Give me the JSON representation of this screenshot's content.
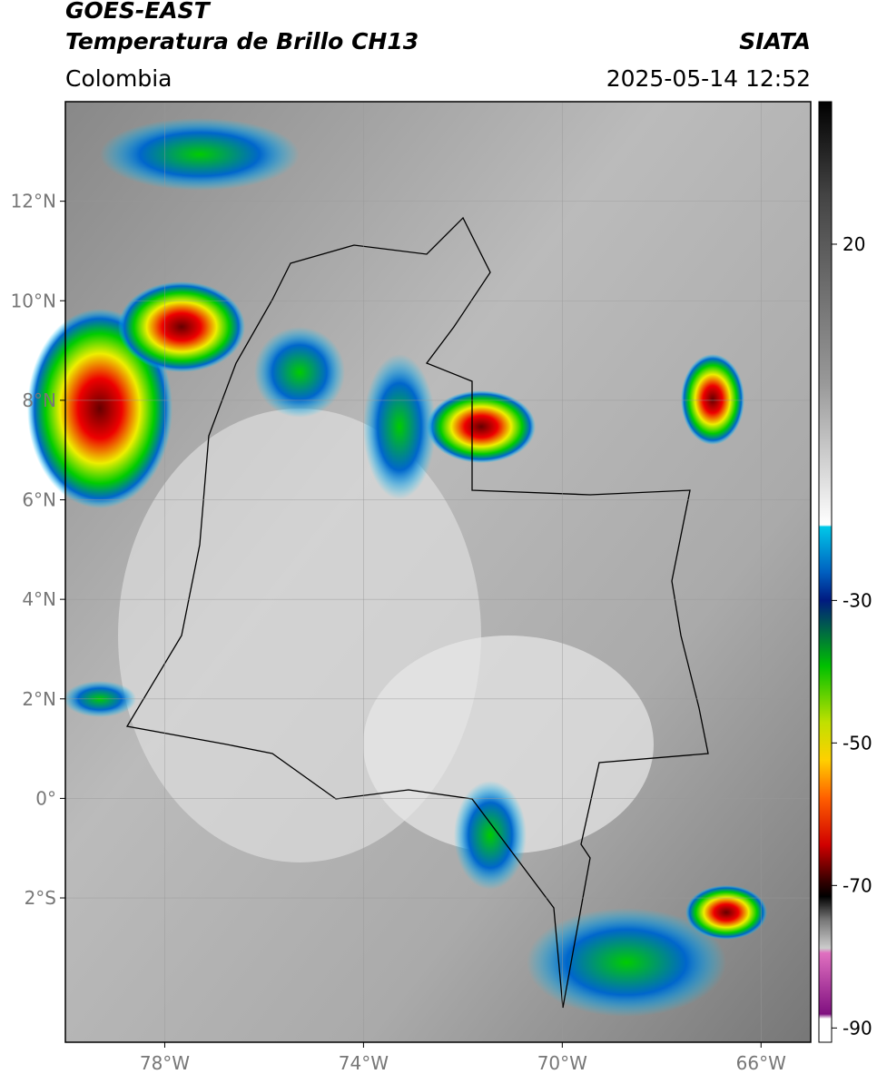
{
  "header": {
    "line1": "GOES-EAST",
    "title": "Temperatura de Brillo CH13",
    "source": "SIATA",
    "region": "Colombia",
    "timestamp": "2025-05-14 12:52"
  },
  "map": {
    "lon_range": [
      -80,
      -65
    ],
    "lat_range": [
      -4.9,
      14
    ],
    "lat_ticks": [
      {
        "value": 12,
        "label": "12°N"
      },
      {
        "value": 10,
        "label": "10°N"
      },
      {
        "value": 8,
        "label": "8°N"
      },
      {
        "value": 6,
        "label": "6°N"
      },
      {
        "value": 4,
        "label": "4°N"
      },
      {
        "value": 2,
        "label": "2°N"
      },
      {
        "value": 0,
        "label": "0°"
      },
      {
        "value": -2,
        "label": "2°S"
      }
    ],
    "lon_ticks": [
      {
        "value": -78,
        "label": "78°W"
      },
      {
        "value": -74,
        "label": "74°W"
      },
      {
        "value": -70,
        "label": "70°W"
      },
      {
        "value": -66,
        "label": "66°W"
      }
    ]
  },
  "colorbar": {
    "lim": [
      -92,
      40
    ],
    "ticks": [
      20,
      -30,
      -50,
      -70,
      -90
    ]
  }
}
